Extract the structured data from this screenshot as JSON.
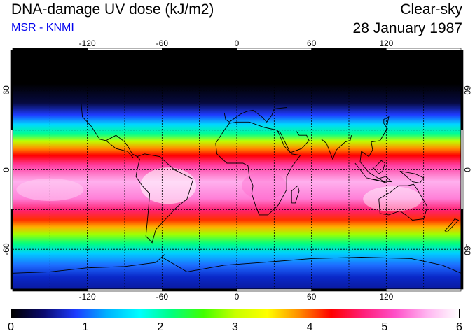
{
  "header": {
    "title": "DNA-damage UV dose (kJ/m2)",
    "subtitle": "MSR - KNMI",
    "sky": "Clear-sky",
    "date": "28 January 1987"
  },
  "map": {
    "lon_ticks": [
      "-120",
      "-60",
      "0",
      "60",
      "120"
    ],
    "lat_ticks": [
      "60",
      "0",
      "-60"
    ],
    "lon_range": [
      -180,
      180
    ],
    "lat_range": [
      -90,
      90
    ]
  },
  "colorbar": {
    "labels": [
      "0",
      "1",
      "2",
      "3",
      "4",
      "5",
      "6"
    ],
    "range": [
      0,
      6
    ],
    "colors": [
      "#000000",
      "#0a0a6e",
      "#1e3cff",
      "#00b4ff",
      "#00ffff",
      "#00ff80",
      "#40ff00",
      "#c8ff00",
      "#ffff00",
      "#ff8c00",
      "#ff0000",
      "#ff1e78",
      "#ff50c8",
      "#ffb4f0",
      "#ffffff"
    ]
  },
  "colors": {
    "subtitle": "#0000ee"
  }
}
